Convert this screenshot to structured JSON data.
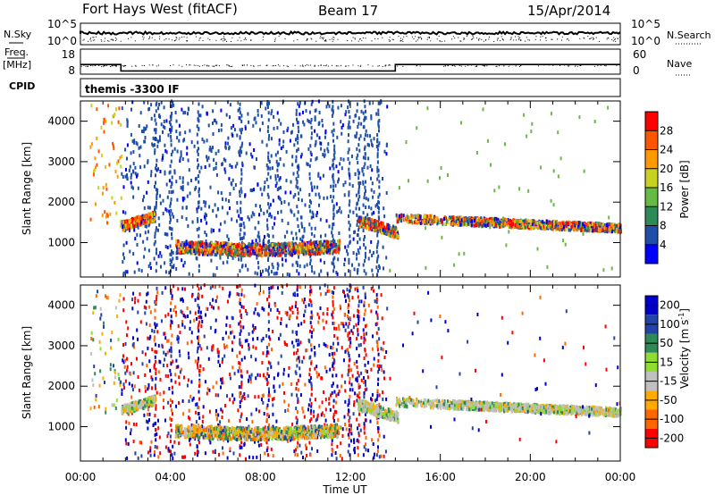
{
  "header": {
    "station": "Fort Hays West (fitACF)",
    "beam": "Beam 17",
    "date": "15/Apr/2014"
  },
  "left_labels": {
    "nsky": "N.Sky",
    "freq": "Freq.",
    "freq_unit": "[MHz]",
    "cpid": "CPID"
  },
  "right_labels": {
    "nsearch": "N.Search",
    "nave": "Nave"
  },
  "cpid_text": "themis -3300 IF",
  "chart_data": [
    {
      "type": "line",
      "name": "noise",
      "yticks_left": [
        "10^5",
        "10^0"
      ],
      "yticks_right": [
        "10^5",
        "10^0"
      ]
    },
    {
      "type": "line",
      "name": "frequency",
      "yticks_left": [
        "18",
        "8"
      ],
      "yticks_right": [
        "60",
        "0"
      ],
      "freq_steps": [
        {
          "from": 0.0,
          "to": 1.8,
          "value": 14
        },
        {
          "from": 1.8,
          "to": 14.0,
          "value": 10
        },
        {
          "from": 14.0,
          "to": 24.0,
          "value": 14
        }
      ]
    },
    {
      "type": "heatmap",
      "name": "power",
      "ylabel": "Slant Range [km]",
      "yticks": [
        1000,
        2000,
        3000,
        4000
      ],
      "ylim": [
        150,
        4500
      ],
      "xlim": [
        0,
        24
      ],
      "colorbar_label": "Power [dB]",
      "colorbar_ticks": [
        "28",
        "24",
        "20",
        "16",
        "12",
        "8",
        "4"
      ]
    },
    {
      "type": "heatmap",
      "name": "velocity",
      "ylabel": "Slant Range [km]",
      "yticks": [
        1000,
        2000,
        3000,
        4000
      ],
      "ylim": [
        150,
        4500
      ],
      "xlim": [
        0,
        24
      ],
      "colorbar_ticks": [
        "200",
        "100",
        "50",
        "15",
        "-15",
        "-50",
        "-100",
        "-200"
      ]
    }
  ],
  "xaxis": {
    "label": "Time UT",
    "ticks": [
      "00:00",
      "04:00",
      "08:00",
      "12:00",
      "16:00",
      "20:00",
      "00:00"
    ]
  },
  "colors": {
    "power": [
      "#0000ff",
      "#1f4fa8",
      "#2e8b57",
      "#66bb44",
      "#c8d020",
      "#ff9900",
      "#ff5500",
      "#ff0000"
    ],
    "velocity": [
      "#ff0000",
      "#ff6600",
      "#ffaa00",
      "#c0c0c0",
      "#90dd30",
      "#2e8b57",
      "#2244aa",
      "#0000cc"
    ]
  }
}
